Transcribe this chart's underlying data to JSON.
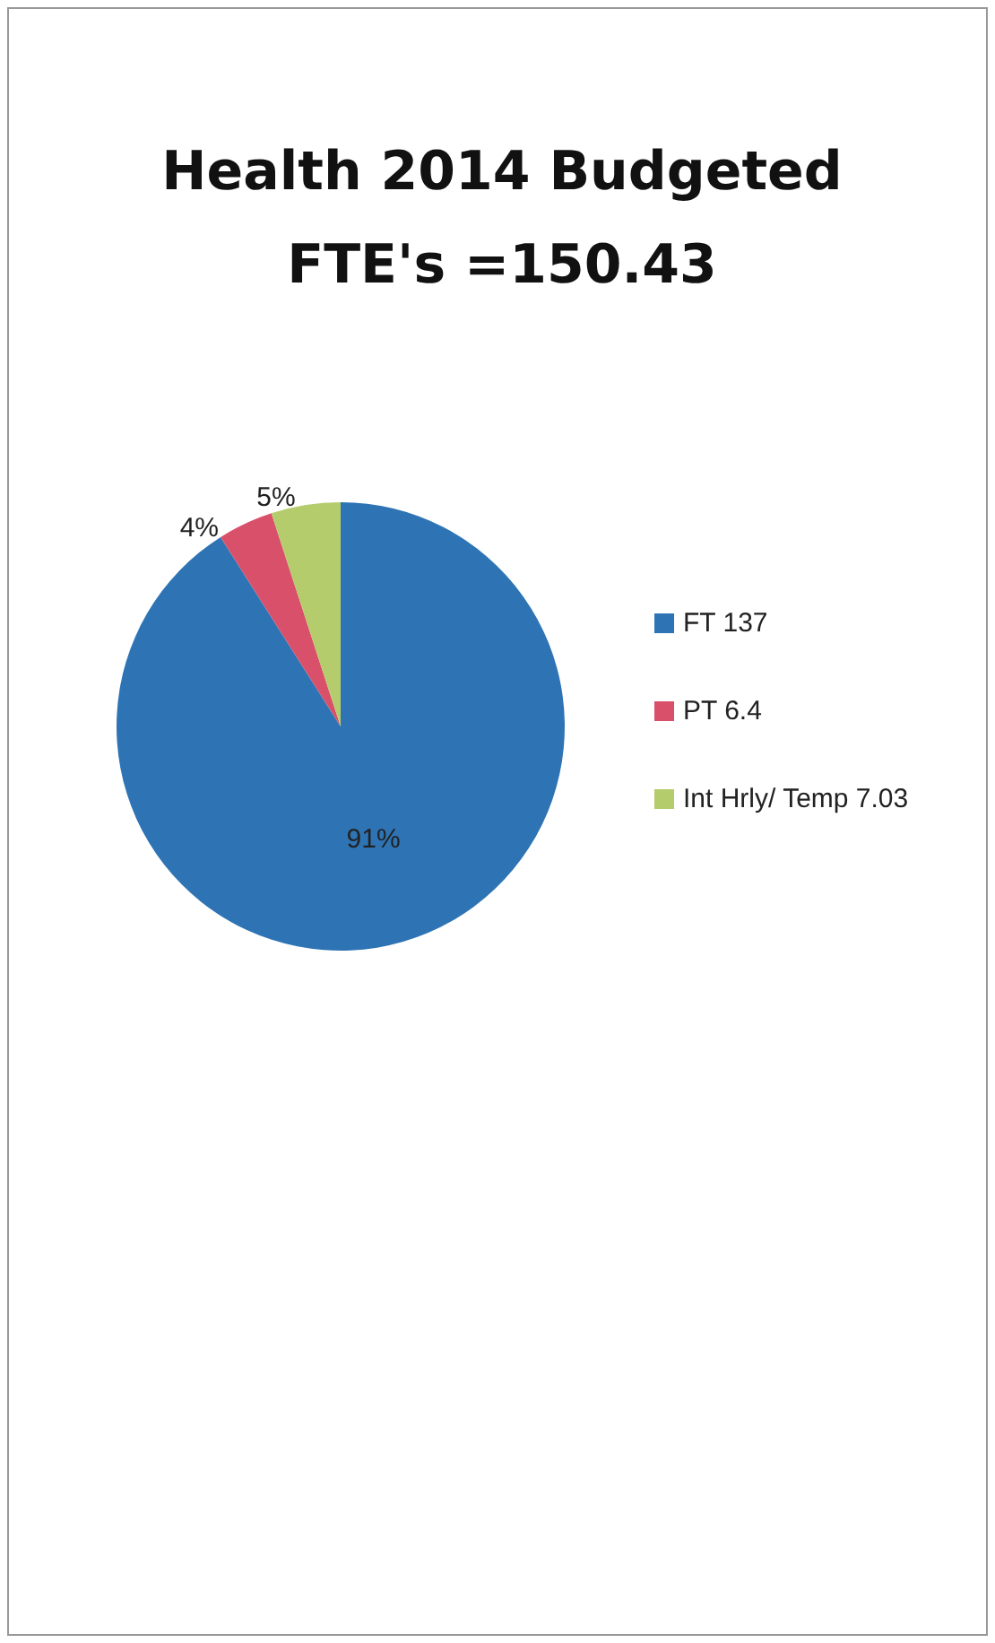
{
  "chart_data": {
    "type": "pie",
    "title": "Health 2014 Budgeted\nFTE's =150.43",
    "categories": [
      "FT 137",
      "PT 6.4",
      "Int Hrly/ Temp 7.03"
    ],
    "values": [
      91,
      4,
      5
    ],
    "colors": [
      "#2e74b5",
      "#d9506a",
      "#b5cc6c"
    ],
    "value_labels": [
      "91%",
      "4%",
      "5%"
    ],
    "legend": "right"
  }
}
